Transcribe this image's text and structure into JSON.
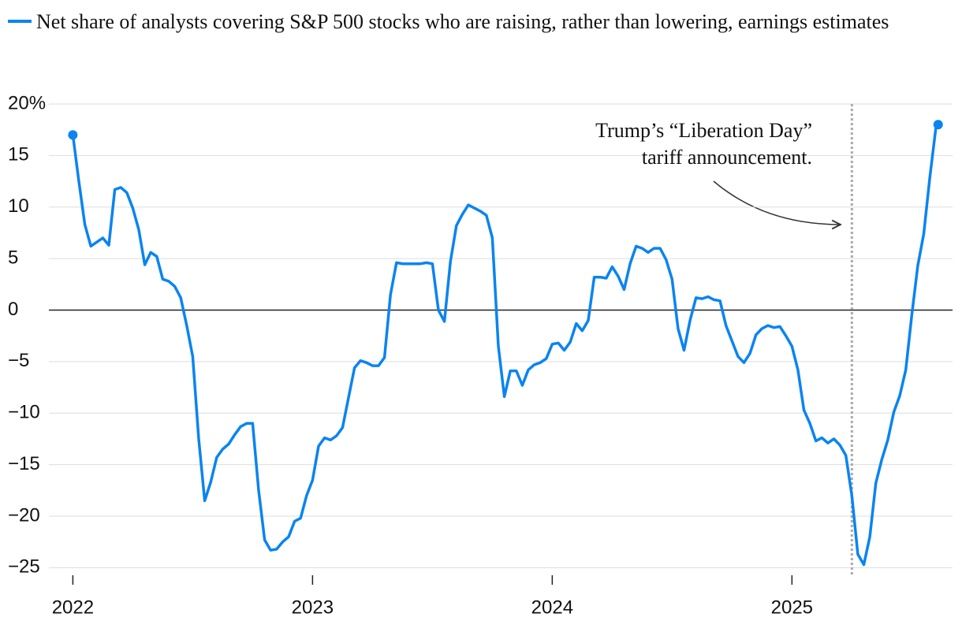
{
  "chart_data": {
    "type": "line",
    "series": [
      {
        "name": "Net share of analysts covering S&P 500 stocks who are raising, rather than lowering, earnings estimates",
        "color": "#0a84f0",
        "values": [
          17,
          12.5,
          8.3,
          6.2,
          6.6,
          7,
          6.3,
          11.7,
          11.9,
          11.4,
          9.9,
          7.8,
          4.4,
          5.6,
          5.2,
          3,
          2.8,
          2.3,
          1.2,
          -1.5,
          -4.5,
          -12.5,
          -18.5,
          -16.7,
          -14.3,
          -13.5,
          -13,
          -12.1,
          -11.3,
          -11,
          -11,
          -17.5,
          -22.3,
          -23.3,
          -23.2,
          -22.5,
          -22,
          -20.5,
          -20.2,
          -18,
          -16.5,
          -13.2,
          -12.4,
          -12.6,
          -12.2,
          -11.4,
          -8.5,
          -5.6,
          -4.9,
          -5.1,
          -5.4,
          -5.4,
          -4.6,
          1.5,
          4.6,
          4.5,
          4.5,
          4.5,
          4.5,
          4.6,
          4.5,
          0,
          -1.1,
          4.7,
          8.2,
          9.3,
          10.2,
          9.9,
          9.6,
          9.2,
          7,
          -3.5,
          -8.4,
          -5.9,
          -5.9,
          -7.3,
          -5.8,
          -5.3,
          -5.1,
          -4.7,
          -3.3,
          -3.2,
          -3.9,
          -3.1,
          -1.3,
          -2,
          -1,
          3.2,
          3.2,
          3.1,
          4.2,
          3.3,
          2,
          4.5,
          6.2,
          6,
          5.6,
          6,
          6,
          4.9,
          3,
          -1.8,
          -3.9,
          -1,
          1.2,
          1.1,
          1.3,
          1,
          0.9,
          -1.5,
          -3,
          -4.5,
          -5.1,
          -4.2,
          -2.4,
          -1.8,
          -1.5,
          -1.7,
          -1.6,
          -2.5,
          -3.5,
          -5.8,
          -9.7,
          -11,
          -12.7,
          -12.4,
          -12.9,
          -12.5,
          -13.1,
          -14.1,
          -18,
          -23.7,
          -24.7,
          -22,
          -16.8,
          -14.5,
          -12.6,
          -9.9,
          -8.3,
          -5.8,
          -0.5,
          4.3,
          7.4,
          12.8,
          17.6,
          18
        ]
      }
    ],
    "x": [
      2022,
      2022.025,
      2022.05,
      2022.075,
      2022.1,
      2022.125,
      2022.15,
      2022.175,
      2022.2,
      2022.225,
      2022.25,
      2022.275,
      2022.3,
      2022.325,
      2022.35,
      2022.375,
      2022.4,
      2022.425,
      2022.45,
      2022.475,
      2022.5,
      2022.525,
      2022.55,
      2022.575,
      2022.6,
      2022.625,
      2022.65,
      2022.675,
      2022.7,
      2022.725,
      2022.75,
      2022.775,
      2022.8,
      2022.825,
      2022.85,
      2022.875,
      2022.9,
      2022.925,
      2022.95,
      2022.975,
      2023,
      2023.025,
      2023.05,
      2023.075,
      2023.1,
      2023.125,
      2023.15,
      2023.175,
      2023.2,
      2023.225,
      2023.25,
      2023.275,
      2023.3,
      2023.325,
      2023.35,
      2023.375,
      2023.4,
      2023.425,
      2023.45,
      2023.475,
      2023.5,
      2023.525,
      2023.55,
      2023.575,
      2023.6,
      2023.625,
      2023.65,
      2023.675,
      2023.7,
      2023.725,
      2023.75,
      2023.775,
      2023.8,
      2023.825,
      2023.85,
      2023.875,
      2023.9,
      2023.925,
      2023.95,
      2023.975,
      2024,
      2024.025,
      2024.05,
      2024.075,
      2024.1,
      2024.125,
      2024.15,
      2024.175,
      2024.2,
      2024.225,
      2024.25,
      2024.275,
      2024.3,
      2024.325,
      2024.35,
      2024.375,
      2024.4,
      2024.425,
      2024.45,
      2024.475,
      2024.5,
      2024.525,
      2024.55,
      2024.575,
      2024.6,
      2024.625,
      2024.65,
      2024.675,
      2024.7,
      2024.725,
      2024.75,
      2024.775,
      2024.8,
      2024.825,
      2024.85,
      2024.875,
      2024.9,
      2024.925,
      2024.95,
      2024.975,
      2025,
      2025.025,
      2025.05,
      2025.075,
      2025.1,
      2025.125,
      2025.15,
      2025.175,
      2025.2,
      2025.225,
      2025.25,
      2025.275,
      2025.3,
      2025.325,
      2025.35,
      2025.375,
      2025.4,
      2025.425,
      2025.45,
      2025.475,
      2025.5,
      2025.525,
      2025.55,
      2025.575,
      2025.6,
      2025.61
    ],
    "xlim": [
      2021.9,
      2025.67
    ],
    "xticks": [
      2022,
      2023,
      2024,
      2025
    ],
    "ylim": [
      -26.5,
      20
    ],
    "yticks": [
      {
        "value": 20,
        "label": "20%"
      },
      15,
      10,
      5,
      0,
      {
        "value": -5,
        "label": "−5"
      },
      {
        "value": -10,
        "label": "−10"
      },
      {
        "value": -15,
        "label": "−15"
      },
      {
        "value": -20,
        "label": "−20"
      },
      {
        "value": -25,
        "label": "−25"
      }
    ],
    "grid": true,
    "annotation": {
      "text": [
        "Trump’s “Liberation Day”",
        "tariff announcement."
      ],
      "x": 2025.25
    }
  }
}
